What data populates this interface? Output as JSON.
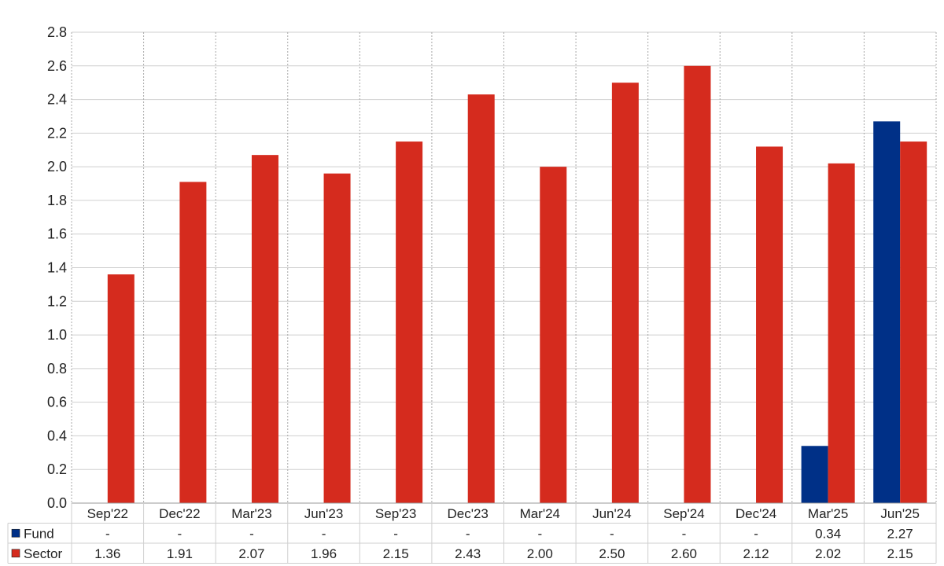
{
  "chart_data": {
    "type": "bar",
    "categories": [
      "Sep'22",
      "Dec'22",
      "Mar'23",
      "Jun'23",
      "Sep'23",
      "Dec'23",
      "Mar'24",
      "Jun'24",
      "Sep'24",
      "Dec'24",
      "Mar'25",
      "Jun'25"
    ],
    "series": [
      {
        "name": "Fund",
        "color": "#003087",
        "values": [
          null,
          null,
          null,
          null,
          null,
          null,
          null,
          null,
          null,
          null,
          0.34,
          2.27
        ],
        "labels": [
          "-",
          "-",
          "-",
          "-",
          "-",
          "-",
          "-",
          "-",
          "-",
          "-",
          "0.34",
          "2.27"
        ]
      },
      {
        "name": "Sector",
        "color": "#d52b1e",
        "values": [
          1.36,
          1.91,
          2.07,
          1.96,
          2.15,
          2.43,
          2.0,
          2.5,
          2.6,
          2.12,
          2.02,
          2.15
        ],
        "labels": [
          "1.36",
          "1.91",
          "2.07",
          "1.96",
          "2.15",
          "2.43",
          "2.00",
          "2.50",
          "2.60",
          "2.12",
          "2.02",
          "2.15"
        ]
      }
    ],
    "ylim": [
      0,
      2.8
    ],
    "yticks": [
      "0.0",
      "0.2",
      "0.4",
      "0.6",
      "0.8",
      "1.0",
      "1.2",
      "1.4",
      "1.6",
      "1.8",
      "2.0",
      "2.2",
      "2.4",
      "2.6",
      "2.8"
    ],
    "grid": true,
    "legend": "data-table-left"
  }
}
